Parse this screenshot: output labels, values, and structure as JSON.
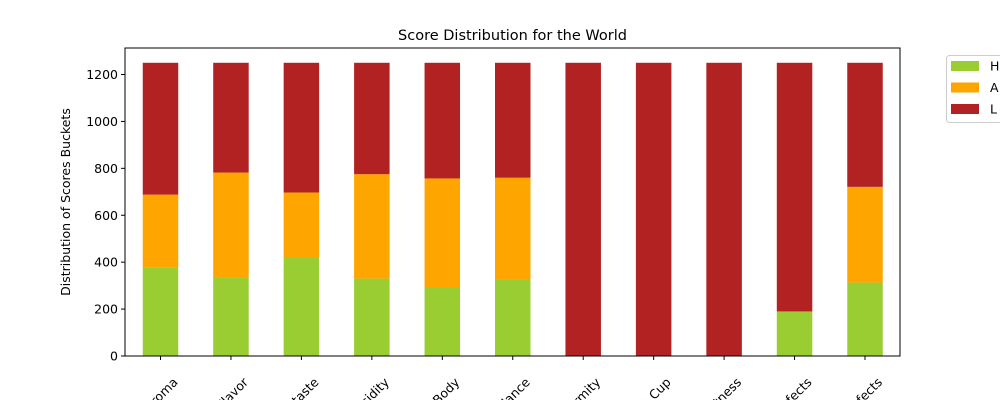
{
  "chart_data": {
    "type": "bar",
    "stacked": true,
    "title": "Score Distribution for the World",
    "xlabel": "",
    "ylabel": "Distribution of Scores Buckets",
    "ylim": [
      0,
      1313
    ],
    "yticks": [
      0,
      200,
      400,
      600,
      800,
      1000,
      1200
    ],
    "grid": false,
    "legend_position": "outside-top-right",
    "categories": [
      "Aroma",
      "Flavor",
      "Aftertaste",
      "Acidity",
      "Body",
      "Balance",
      "Uniformity",
      "Clean.Cup",
      "Sweetness",
      "Category.One.Defects",
      "Category.Two.Defects"
    ],
    "tick_labels_visible": [
      "Aroma",
      "Flavor",
      "rtaste",
      "Acidity",
      "Body",
      "alance",
      "ormity",
      "n.Cup",
      "etness",
      "efects",
      "efects"
    ],
    "series": [
      {
        "name": "High",
        "legend_visible": "H",
        "color": "#9acd32",
        "values": [
          378,
          335,
          420,
          330,
          292,
          328,
          0,
          0,
          0,
          190,
          313
        ]
      },
      {
        "name": "Average",
        "legend_visible": "A",
        "color": "#ffa500",
        "values": [
          310,
          447,
          277,
          445,
          465,
          432,
          0,
          0,
          0,
          0,
          408
        ]
      },
      {
        "name": "Low",
        "legend_visible": "L",
        "color": "#b22222",
        "values": [
          562,
          468,
          553,
          475,
          493,
          490,
          1250,
          1250,
          1250,
          1060,
          529
        ]
      }
    ]
  }
}
